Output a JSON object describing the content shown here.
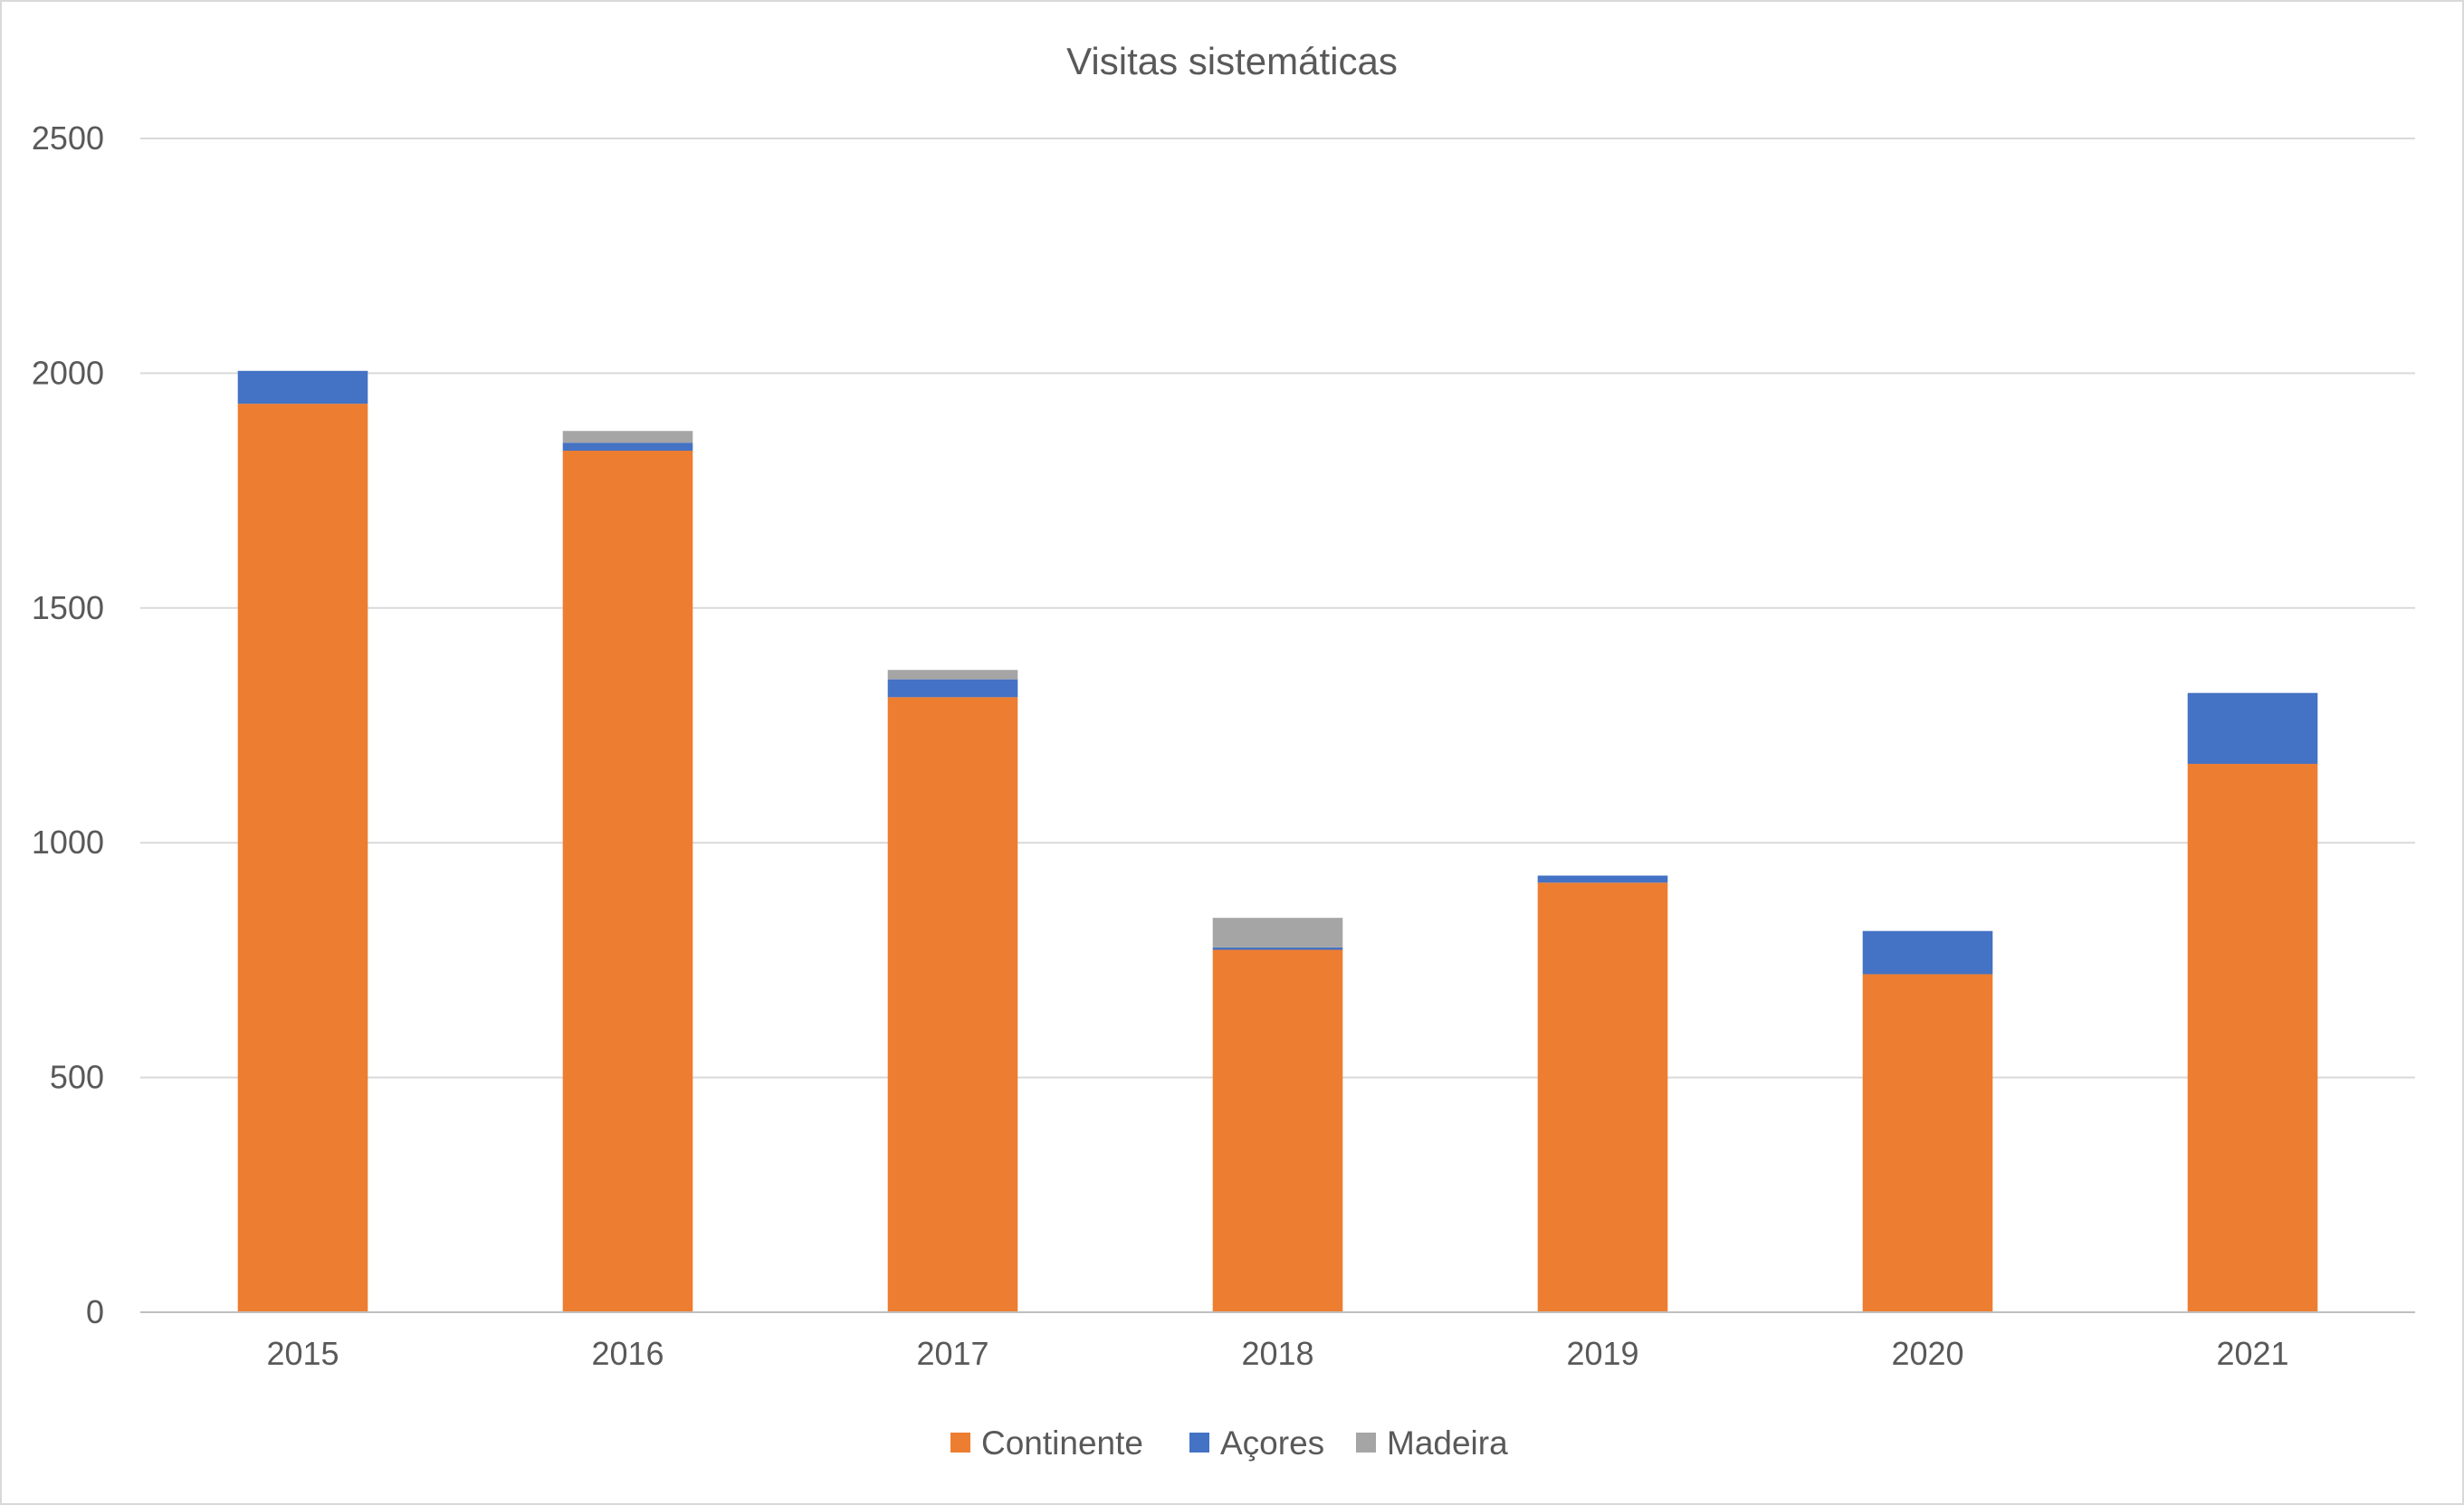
{
  "chart_data": {
    "type": "bar",
    "stacked": true,
    "title": "Visitas sistemáticas",
    "xlabel": "",
    "ylabel": "",
    "categories": [
      "2015",
      "2016",
      "2017",
      "2018",
      "2019",
      "2020",
      "2021"
    ],
    "series": [
      {
        "name": "Continente",
        "color": "#ED7D31",
        "values": [
          1935,
          1835,
          1310,
          772,
          915,
          720,
          1168
        ]
      },
      {
        "name": "Açores",
        "color": "#4472C4",
        "values": [
          70,
          17,
          38,
          5,
          15,
          92,
          151
        ]
      },
      {
        "name": "Madeira",
        "color": "#A5A5A5",
        "values": [
          0,
          25,
          20,
          63,
          0,
          0,
          0
        ]
      }
    ],
    "ylim": [
      0,
      2500
    ],
    "yticks": [
      0,
      500,
      1000,
      1500,
      2000,
      2500
    ],
    "grid": true,
    "legend_position": "bottom"
  }
}
